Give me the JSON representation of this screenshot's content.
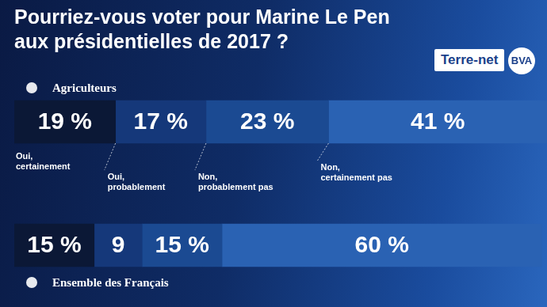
{
  "chart_data": {
    "type": "bar",
    "orientation": "horizontal",
    "stacked": true,
    "title": "Pourriez-vous voter pour Marine Le Pen aux présidentielles de 2017 ?",
    "logos": [
      "Terre-net",
      "BVA"
    ],
    "categories": [
      "Agriculteurs",
      "Ensemble des Français"
    ],
    "series": [
      {
        "name": "Oui, certainement",
        "color": "#0b1836",
        "values": [
          19,
          15
        ],
        "value_labels": [
          "19 %",
          "15 %"
        ]
      },
      {
        "name": "Oui, probablement",
        "color": "#15387a",
        "values": [
          17,
          9
        ],
        "value_labels": [
          "17 %",
          "9"
        ]
      },
      {
        "name": "Non, probablement pas",
        "color": "#1b4a92",
        "values": [
          23,
          15
        ],
        "value_labels": [
          "23 %",
          "15 %"
        ]
      },
      {
        "name": "Non, certainement pas",
        "color": "#2a62b3",
        "values": [
          41,
          60
        ],
        "value_labels": [
          "41 %",
          "60 %"
        ]
      }
    ],
    "xlim": [
      0,
      100
    ],
    "tick_labels": false,
    "grid": false,
    "data_labels": true
  }
}
